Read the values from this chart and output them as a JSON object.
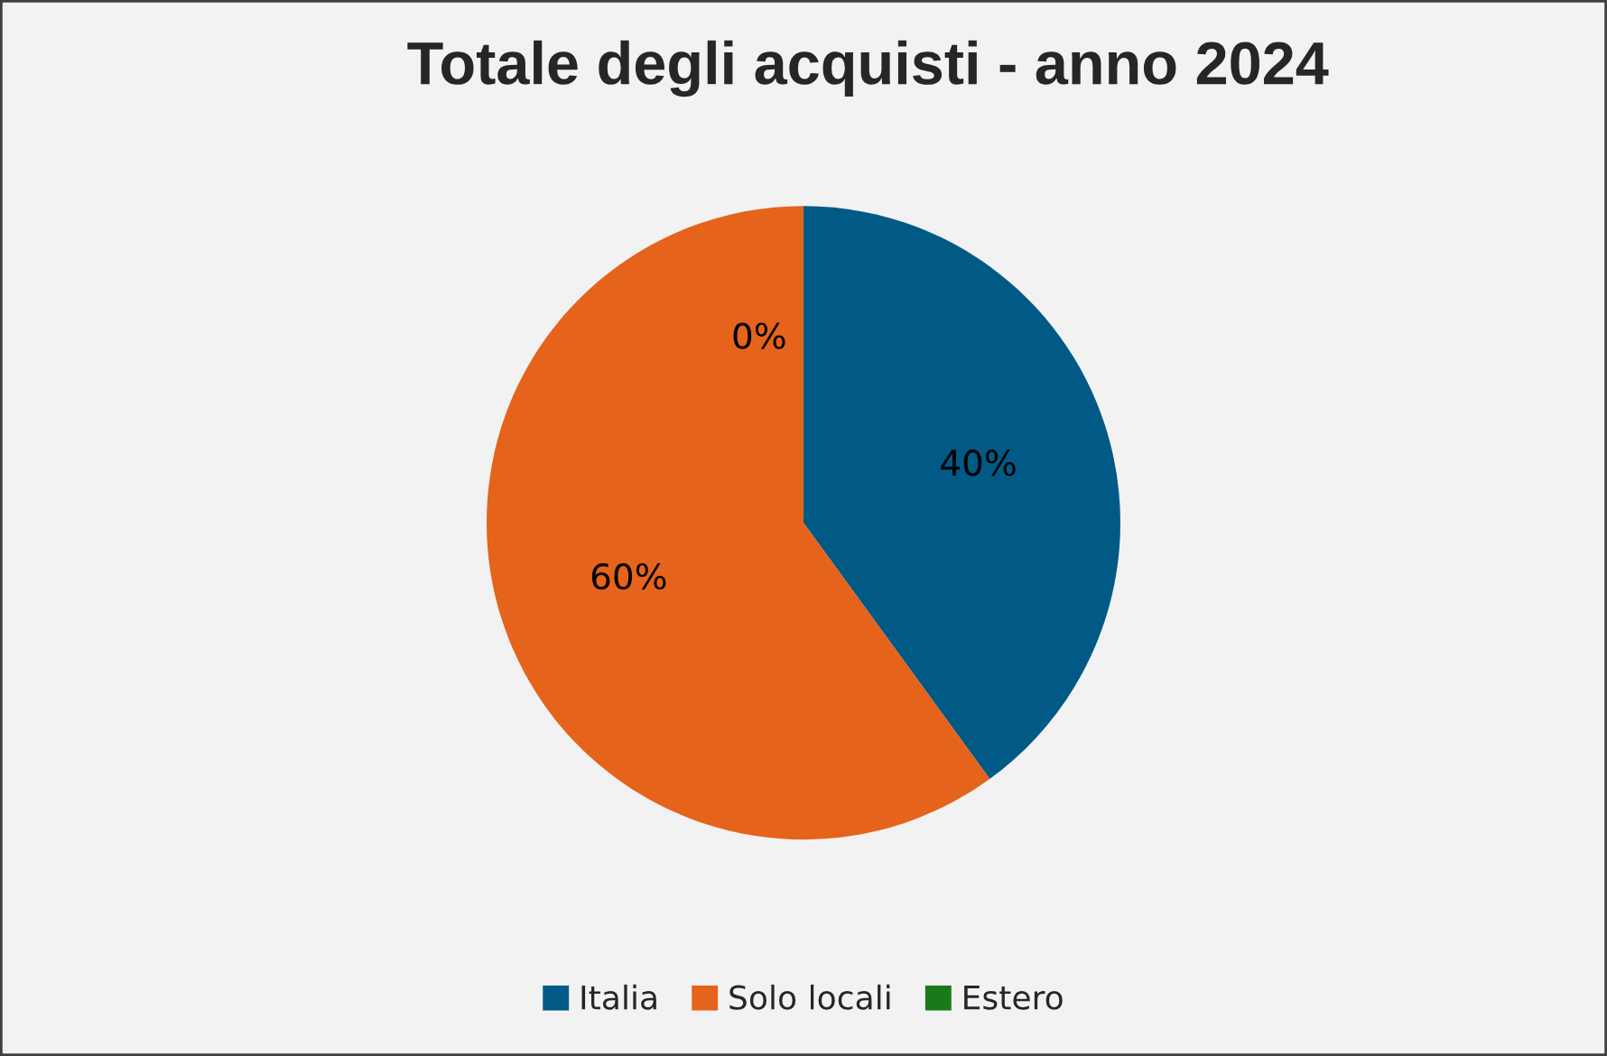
{
  "chart_data": {
    "type": "pie",
    "title": "Totale degli acquisti - anno 2024",
    "categories": [
      "Italia",
      "Solo locali",
      "Estero"
    ],
    "values": [
      40,
      60,
      0
    ],
    "colors": [
      "#005a85",
      "#e5631a",
      "#1a7a1a"
    ],
    "value_labels": [
      "40%",
      "60%",
      "0%"
    ],
    "legend": "bottom"
  }
}
